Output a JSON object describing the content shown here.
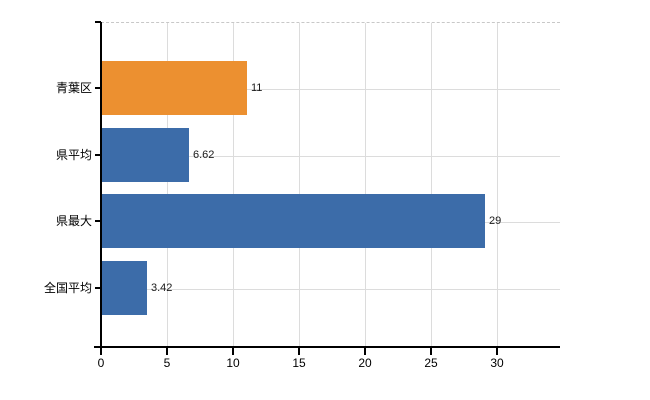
{
  "chart_data": {
    "type": "bar",
    "orientation": "horizontal",
    "title": "",
    "xlabel": "",
    "ylabel": "",
    "categories": [
      "青葉区",
      "県平均",
      "県最大",
      "全国平均"
    ],
    "values": [
      11,
      6.62,
      29,
      3.42
    ],
    "value_labels": [
      "11",
      "6.62",
      "29",
      "3.42"
    ],
    "x_ticks": [
      "0",
      "5",
      "10",
      "15",
      "20",
      "25",
      "30"
    ],
    "x_tick_values": [
      0,
      5,
      10,
      15,
      20,
      25,
      30
    ],
    "xlim": [
      0,
      34.8
    ],
    "grid": true,
    "legend": false,
    "colors": {
      "highlight_bar": "#EC9030",
      "default_bar": "#3C6CA9",
      "gridline": "#DCDCDC",
      "top_border": "#C8C8C8",
      "axis": "#000000",
      "text": "#000000",
      "background": "#FFFFFF"
    },
    "bar_color_keys": [
      "highlight_bar",
      "default_bar",
      "default_bar",
      "default_bar"
    ]
  }
}
